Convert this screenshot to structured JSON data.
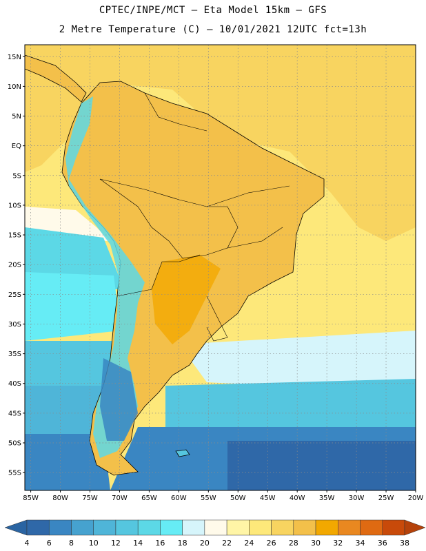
{
  "header": {
    "line1": "CPTEC/INPE/MCT –  Eta Model 15km – GFS",
    "line2": "2 Metre Temperature (C) – 10/01/2021 12UTC fct=13h"
  },
  "map": {
    "region": "South America",
    "lat_range": [
      -58,
      17
    ],
    "lon_range": [
      -86,
      -20
    ],
    "grid": true,
    "lat_labels": [
      "15N",
      "10N",
      "5N",
      "EQ",
      "5S",
      "10S",
      "15S",
      "20S",
      "25S",
      "30S",
      "35S",
      "40S",
      "45S",
      "50S",
      "55S"
    ],
    "lat_values": [
      15,
      10,
      5,
      0,
      -5,
      -10,
      -15,
      -20,
      -25,
      -30,
      -35,
      -40,
      -45,
      -50,
      -55
    ],
    "lon_labels": [
      "85W",
      "80W",
      "75W",
      "70W",
      "65W",
      "60W",
      "55W",
      "50W",
      "45W",
      "40W",
      "35W",
      "30W",
      "25W",
      "20W"
    ],
    "lon_values": [
      -85,
      -80,
      -75,
      -70,
      -65,
      -60,
      -55,
      -50,
      -45,
      -40,
      -35,
      -30,
      -25,
      -20
    ],
    "land_color": "#f3c04a",
    "grid_color": "#8a8a8a"
  },
  "colorbar": {
    "labels": [
      "4",
      "6",
      "8",
      "10",
      "12",
      "14",
      "16",
      "18",
      "20",
      "22",
      "24",
      "26",
      "28",
      "30",
      "32",
      "34",
      "36",
      "38"
    ],
    "colors": [
      "#2f68a8",
      "#3a86c2",
      "#46a2cf",
      "#4fb5d8",
      "#55c6df",
      "#5cd8e6",
      "#66ecf5",
      "#d6f5fb",
      "#fffaea",
      "#fff5a6",
      "#fde87a",
      "#f8d460",
      "#f3c04a",
      "#f2a800",
      "#e98820",
      "#df6a12",
      "#c84a0a"
    ],
    "left_arrow_color": "#2a64a2",
    "right_arrow_color": "#b5420a"
  }
}
